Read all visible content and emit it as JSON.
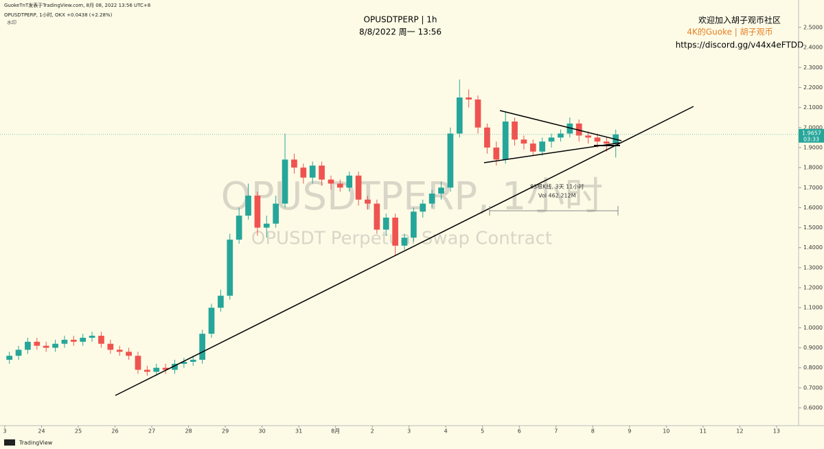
{
  "header": {
    "source": "GuokeTnT发表于TradingView.com, 8月 08, 2022 13:56 UTC+8",
    "symbol_line": "OPUSDTPERP, 1小时, OKX  +0.0438 (+2.28%)",
    "sub_line": "水印",
    "footer": "TradingView"
  },
  "overlay": {
    "title": "OPUSDTPERP | 1h",
    "date": "8/8/2022 周一 13:56",
    "welcome": "欢迎加入胡子观币社区",
    "author": "4K的Guoke | 胡子观币",
    "link": "https://discord.gg/v44x4eFTDD",
    "watermark": "OPUSDTPERP, 1小时",
    "watermark_sub": "OPUSDT Perpetual Swap Contract",
    "measure_bars": "83根K线, 3天 11小时",
    "measure_vol": "Vol 462.212M",
    "countdown": "03:33"
  },
  "chart_data": {
    "type": "candlestick",
    "up_color": "#26a69a",
    "down_color": "#ef5350",
    "grid": false,
    "x": [
      0.125,
      0.375,
      0.625,
      0.875,
      1.125,
      1.375,
      1.625,
      1.875,
      2.125,
      2.375,
      2.625,
      2.875,
      3.125,
      3.375,
      3.625,
      3.875,
      4.125,
      4.375,
      4.625,
      4.875,
      5.125,
      5.375,
      5.625,
      5.875,
      6.125,
      6.375,
      6.625,
      6.875,
      7.125,
      7.375,
      7.625,
      7.875,
      8.125,
      8.375,
      8.625,
      8.875,
      9.125,
      9.375,
      9.625,
      9.875,
      10.125,
      10.375,
      10.625,
      10.875,
      11.125,
      11.375,
      11.625,
      11.875,
      12.125,
      12.375,
      12.625,
      12.875,
      13.125,
      13.375,
      13.625,
      13.875,
      14.125,
      14.375,
      14.625,
      14.875,
      15.125,
      15.375,
      15.625,
      15.875,
      16.125,
      16.375,
      16.625
    ],
    "open": [
      0.84,
      0.86,
      0.89,
      0.93,
      0.91,
      0.9,
      0.92,
      0.94,
      0.93,
      0.95,
      0.96,
      0.92,
      0.89,
      0.88,
      0.86,
      0.79,
      0.78,
      0.8,
      0.79,
      0.82,
      0.83,
      0.84,
      0.97,
      1.1,
      1.16,
      1.44,
      1.56,
      1.66,
      1.5,
      1.52,
      1.62,
      1.84,
      1.8,
      1.75,
      1.81,
      1.74,
      1.72,
      1.7,
      1.76,
      1.64,
      1.62,
      1.49,
      1.55,
      1.41,
      1.45,
      1.58,
      1.62,
      1.67,
      1.7,
      1.97,
      2.15,
      2.14,
      2.0,
      1.9,
      1.84,
      2.03,
      1.94,
      1.92,
      1.88,
      1.93,
      1.95,
      1.97,
      2.02,
      1.96,
      1.95,
      1.93,
      1.92
    ],
    "high": [
      0.88,
      0.91,
      0.95,
      0.95,
      0.93,
      0.94,
      0.96,
      0.96,
      0.97,
      0.98,
      0.98,
      0.94,
      0.91,
      0.9,
      0.88,
      0.81,
      0.82,
      0.82,
      0.84,
      0.85,
      0.86,
      0.99,
      1.12,
      1.19,
      1.47,
      1.6,
      1.72,
      1.68,
      1.56,
      1.66,
      1.97,
      1.87,
      1.82,
      1.83,
      1.83,
      1.76,
      1.74,
      1.78,
      1.78,
      1.66,
      1.64,
      1.57,
      1.57,
      1.47,
      1.6,
      1.64,
      1.69,
      1.73,
      2.0,
      2.24,
      2.19,
      2.16,
      2.02,
      1.93,
      2.08,
      2.05,
      1.96,
      1.94,
      1.95,
      1.97,
      1.99,
      2.05,
      2.04,
      1.98,
      1.97,
      1.95,
      1.99
    ],
    "low": [
      0.82,
      0.84,
      0.87,
      0.89,
      0.88,
      0.88,
      0.9,
      0.91,
      0.91,
      0.93,
      0.9,
      0.87,
      0.86,
      0.84,
      0.77,
      0.76,
      0.76,
      0.77,
      0.77,
      0.8,
      0.81,
      0.82,
      0.95,
      1.08,
      1.14,
      1.42,
      1.54,
      1.46,
      1.45,
      1.5,
      1.6,
      1.77,
      1.72,
      1.72,
      1.71,
      1.69,
      1.68,
      1.68,
      1.61,
      1.59,
      1.47,
      1.46,
      1.36,
      1.39,
      1.43,
      1.55,
      1.6,
      1.64,
      1.68,
      1.95,
      2.1,
      1.97,
      1.87,
      1.81,
      1.82,
      1.91,
      1.89,
      1.86,
      1.86,
      1.9,
      1.93,
      1.95,
      1.93,
      1.92,
      1.9,
      1.88,
      1.85
    ],
    "close": [
      0.86,
      0.89,
      0.93,
      0.91,
      0.9,
      0.92,
      0.94,
      0.93,
      0.95,
      0.96,
      0.92,
      0.89,
      0.88,
      0.86,
      0.79,
      0.78,
      0.8,
      0.79,
      0.82,
      0.83,
      0.84,
      0.97,
      1.1,
      1.16,
      1.44,
      1.56,
      1.66,
      1.5,
      1.52,
      1.62,
      1.84,
      1.8,
      1.75,
      1.81,
      1.74,
      1.72,
      1.7,
      1.76,
      1.64,
      1.62,
      1.49,
      1.55,
      1.41,
      1.45,
      1.58,
      1.62,
      1.67,
      1.7,
      1.97,
      2.15,
      2.14,
      2.0,
      1.9,
      1.84,
      2.03,
      1.94,
      1.92,
      1.88,
      1.93,
      1.95,
      1.97,
      2.02,
      1.96,
      1.95,
      1.93,
      1.92,
      1.9657
    ],
    "xlim": [
      -0.13,
      21.6
    ],
    "ylim": [
      0.511,
      2.637
    ],
    "xticks": [
      {
        "value": 0,
        "label": "3"
      },
      {
        "value": 1,
        "label": "24"
      },
      {
        "value": 2,
        "label": "25"
      },
      {
        "value": 3,
        "label": "26"
      },
      {
        "value": 4,
        "label": "27"
      },
      {
        "value": 5,
        "label": "28"
      },
      {
        "value": 6,
        "label": "29"
      },
      {
        "value": 7,
        "label": "30"
      },
      {
        "value": 8,
        "label": "31"
      },
      {
        "value": 9,
        "label": "8月"
      },
      {
        "value": 10,
        "label": "2"
      },
      {
        "value": 11,
        "label": "3"
      },
      {
        "value": 12,
        "label": "4"
      },
      {
        "value": 13,
        "label": "5"
      },
      {
        "value": 14,
        "label": "6"
      },
      {
        "value": 15,
        "label": "7"
      },
      {
        "value": 16,
        "label": "8"
      },
      {
        "value": 17,
        "label": "9"
      },
      {
        "value": 18,
        "label": "10"
      },
      {
        "value": 19,
        "label": "11"
      },
      {
        "value": 20,
        "label": "12"
      },
      {
        "value": 21,
        "label": "13"
      }
    ],
    "yticks": [
      {
        "value": 0.6,
        "label": "0.6000"
      },
      {
        "value": 0.7,
        "label": "0.7000"
      },
      {
        "value": 0.8,
        "label": "0.8000"
      },
      {
        "value": 0.9,
        "label": "0.9000"
      },
      {
        "value": 1.0,
        "label": "1.0000"
      },
      {
        "value": 1.1,
        "label": "1.1000"
      },
      {
        "value": 1.2,
        "label": "1.2000"
      },
      {
        "value": 1.3,
        "label": "1.3000"
      },
      {
        "value": 1.4,
        "label": "1.4000"
      },
      {
        "value": 1.5,
        "label": "1.5000"
      },
      {
        "value": 1.6,
        "label": "1.6000"
      },
      {
        "value": 1.7,
        "label": "1.7000"
      },
      {
        "value": 1.8,
        "label": "1.8000"
      },
      {
        "value": 1.9,
        "label": "1.9000"
      },
      {
        "value": 2.0,
        "label": "2.0000"
      },
      {
        "value": 2.1,
        "label": "2.1000"
      },
      {
        "value": 2.2,
        "label": "2.2000"
      },
      {
        "value": 2.3,
        "label": "2.3000"
      },
      {
        "value": 2.4,
        "label": "2.4000"
      },
      {
        "value": 2.5,
        "label": "2.5000"
      }
    ]
  }
}
